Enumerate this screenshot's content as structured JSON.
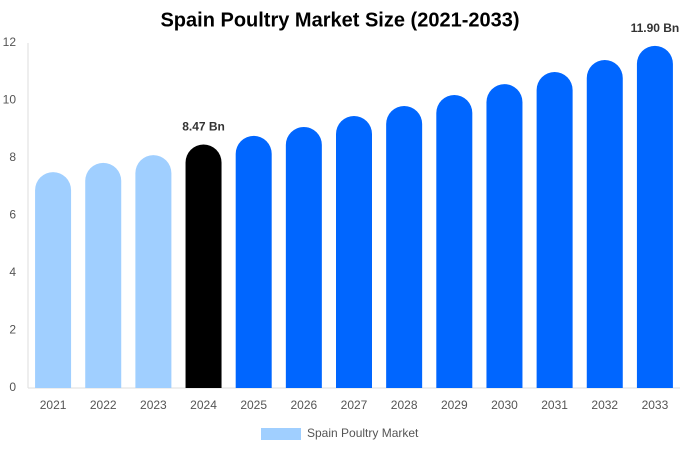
{
  "chart_data": {
    "type": "bar",
    "title": "Spain Poultry Market Size (2021-2033)",
    "categories": [
      "2021",
      "2022",
      "2023",
      "2024",
      "2025",
      "2026",
      "2027",
      "2028",
      "2029",
      "2030",
      "2031",
      "2032",
      "2033"
    ],
    "series": [
      {
        "name": "Spain Poultry Market",
        "color": "#a0cfff",
        "values": [
          7.51,
          7.83,
          8.1,
          8.47,
          8.77,
          9.08,
          9.46,
          9.81,
          10.19,
          10.57,
          10.99,
          11.41,
          11.9
        ],
        "value_labels": [
          null,
          null,
          null,
          "8.47 Bn",
          null,
          null,
          null,
          null,
          null,
          null,
          null,
          null,
          "11.90 Bn"
        ],
        "bar_colors": [
          "#a0cfff",
          "#a0cfff",
          "#a0cfff",
          "#000000",
          "#0066ff",
          "#0066ff",
          "#0066ff",
          "#0066ff",
          "#0066ff",
          "#0066ff",
          "#0066ff",
          "#0066ff",
          "#0066ff"
        ]
      }
    ],
    "ylim": [
      0,
      12
    ],
    "yticks": [
      0,
      2,
      4,
      6,
      8,
      10,
      12
    ],
    "grid": false
  }
}
